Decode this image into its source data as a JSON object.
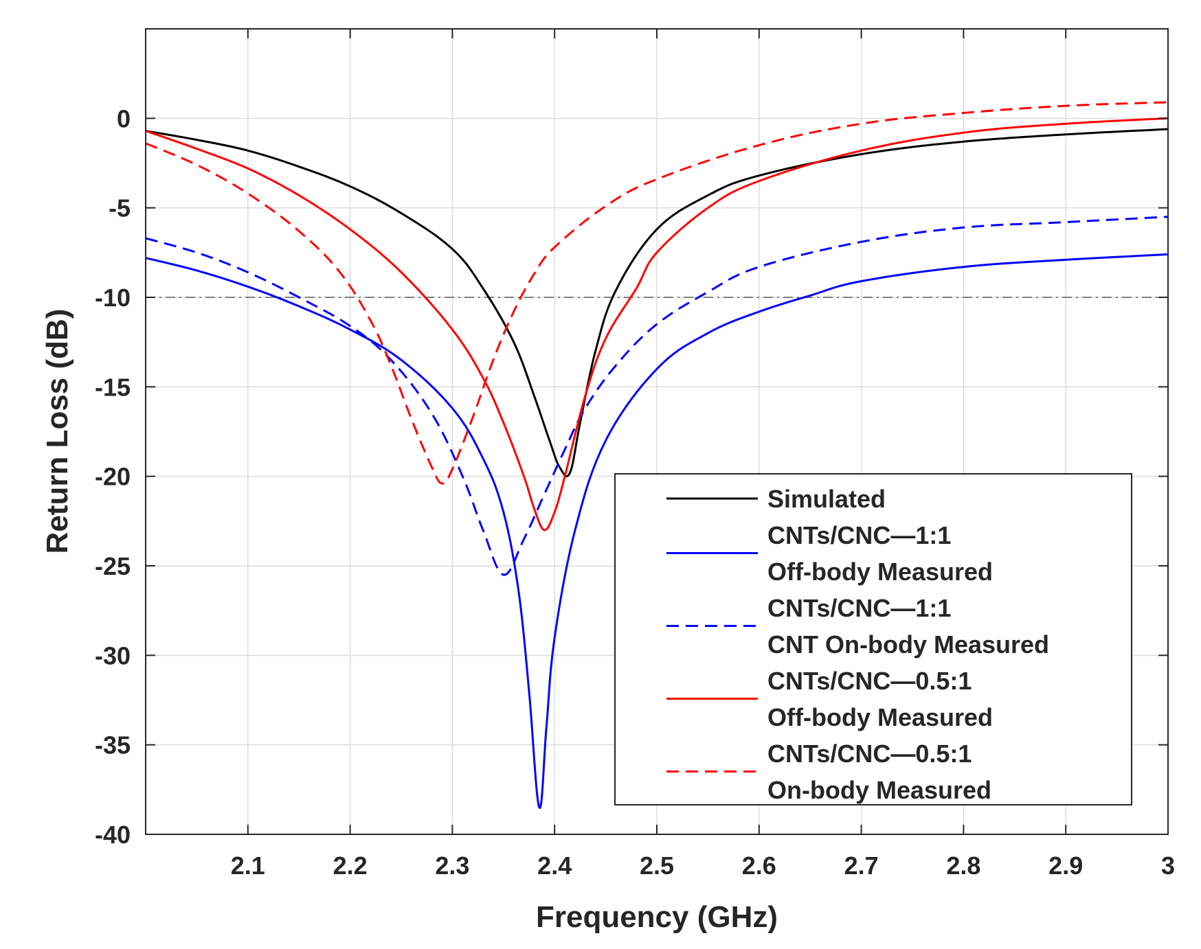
{
  "chart_data": {
    "type": "line",
    "title": "",
    "xlabel": "Frequency (GHz)",
    "ylabel": "Return Loss (dB)",
    "xlim": [
      2.0,
      3.0
    ],
    "ylim": [
      -40,
      5
    ],
    "grid": true,
    "xticks": [
      2.1,
      2.2,
      2.3,
      2.4,
      2.5,
      2.6,
      2.7,
      2.8,
      2.9,
      3.0
    ],
    "xtick_labels": [
      "2.1",
      "2.2",
      "2.3",
      "2.4",
      "2.5",
      "2.6",
      "2.7",
      "2.8",
      "2.9",
      "3"
    ],
    "yticks": [
      0,
      -5,
      -10,
      -15,
      -20,
      -25,
      -30,
      -35,
      -40
    ],
    "ytick_labels": [
      "0",
      "-5",
      "-10",
      "-15",
      "-20",
      "-25",
      "-30",
      "-35",
      "-40"
    ],
    "reference_line": {
      "y": -10,
      "style": "dash-dot",
      "color": "#808080"
    },
    "legend_position": "bottom-right",
    "series": [
      {
        "name": "Simulated",
        "legend_lines": [
          "Simulated"
        ],
        "color": "#000000",
        "style": "solid",
        "points": [
          [
            2.0,
            -0.7
          ],
          [
            2.05,
            -1.2
          ],
          [
            2.1,
            -1.8
          ],
          [
            2.15,
            -2.7
          ],
          [
            2.2,
            -3.8
          ],
          [
            2.25,
            -5.3
          ],
          [
            2.3,
            -7.3
          ],
          [
            2.33,
            -9.5
          ],
          [
            2.36,
            -12.5
          ],
          [
            2.38,
            -15.5
          ],
          [
            2.395,
            -18
          ],
          [
            2.405,
            -19.5
          ],
          [
            2.415,
            -19.8
          ],
          [
            2.425,
            -17
          ],
          [
            2.44,
            -13
          ],
          [
            2.46,
            -9.6
          ],
          [
            2.5,
            -6.2
          ],
          [
            2.55,
            -4.3
          ],
          [
            2.6,
            -3.2
          ],
          [
            2.7,
            -2.0
          ],
          [
            2.8,
            -1.3
          ],
          [
            2.9,
            -0.9
          ],
          [
            3.0,
            -0.6
          ]
        ]
      },
      {
        "name": "CNTs/CNC—1:1 Off-body Measured",
        "legend_lines": [
          "CNTs/CNC—1:1",
          "Off-body Measured"
        ],
        "color": "#0000ff",
        "style": "solid",
        "points": [
          [
            2.0,
            -7.8
          ],
          [
            2.05,
            -8.5
          ],
          [
            2.1,
            -9.4
          ],
          [
            2.15,
            -10.5
          ],
          [
            2.2,
            -11.8
          ],
          [
            2.25,
            -13.5
          ],
          [
            2.3,
            -16.2
          ],
          [
            2.33,
            -19
          ],
          [
            2.35,
            -22
          ],
          [
            2.365,
            -26.5
          ],
          [
            2.375,
            -32
          ],
          [
            2.385,
            -38.5
          ],
          [
            2.392,
            -34
          ],
          [
            2.4,
            -29
          ],
          [
            2.42,
            -23
          ],
          [
            2.45,
            -18
          ],
          [
            2.5,
            -14
          ],
          [
            2.55,
            -12
          ],
          [
            2.6,
            -10.8
          ],
          [
            2.65,
            -9.9
          ],
          [
            2.7,
            -9.1
          ],
          [
            2.8,
            -8.3
          ],
          [
            2.9,
            -7.9
          ],
          [
            3.0,
            -7.6
          ]
        ]
      },
      {
        "name": "CNTs/CNC—1:1 CNT On-body Measured",
        "legend_lines": [
          "CNTs/CNC—1:1",
          "CNT On-body Measured"
        ],
        "color": "#0000ff",
        "style": "dashed",
        "points": [
          [
            2.0,
            -6.7
          ],
          [
            2.05,
            -7.5
          ],
          [
            2.1,
            -8.6
          ],
          [
            2.15,
            -10
          ],
          [
            2.2,
            -11.6
          ],
          [
            2.24,
            -13.5
          ],
          [
            2.28,
            -16.5
          ],
          [
            2.31,
            -20
          ],
          [
            2.33,
            -23
          ],
          [
            2.35,
            -25.5
          ],
          [
            2.37,
            -23.5
          ],
          [
            2.39,
            -21
          ],
          [
            2.41,
            -18.5
          ],
          [
            2.43,
            -16.2
          ],
          [
            2.46,
            -13.8
          ],
          [
            2.5,
            -11.5
          ],
          [
            2.55,
            -9.7
          ],
          [
            2.6,
            -8.3
          ],
          [
            2.7,
            -6.9
          ],
          [
            2.8,
            -6.1
          ],
          [
            2.9,
            -5.8
          ],
          [
            3.0,
            -5.5
          ]
        ]
      },
      {
        "name": "CNTs/CNC—0.5:1 Off-body Measured",
        "legend_lines": [
          "CNTs/CNC—0.5:1",
          "Off-body Measured"
        ],
        "color": "#ff0000",
        "style": "solid",
        "points": [
          [
            2.0,
            -0.7
          ],
          [
            2.05,
            -1.7
          ],
          [
            2.1,
            -2.8
          ],
          [
            2.15,
            -4.3
          ],
          [
            2.2,
            -6.2
          ],
          [
            2.25,
            -8.6
          ],
          [
            2.3,
            -11.8
          ],
          [
            2.33,
            -14.5
          ],
          [
            2.35,
            -17
          ],
          [
            2.37,
            -20
          ],
          [
            2.38,
            -21.8
          ],
          [
            2.39,
            -23
          ],
          [
            2.4,
            -22
          ],
          [
            2.41,
            -20
          ],
          [
            2.43,
            -15.5
          ],
          [
            2.45,
            -12.3
          ],
          [
            2.48,
            -9.5
          ],
          [
            2.5,
            -7.5
          ],
          [
            2.55,
            -5
          ],
          [
            2.6,
            -3.5
          ],
          [
            2.7,
            -1.8
          ],
          [
            2.8,
            -0.8
          ],
          [
            2.9,
            -0.3
          ],
          [
            3.0,
            0.0
          ]
        ]
      },
      {
        "name": "CNTs/CNC—0.5:1 On-body Measured",
        "legend_lines": [
          "CNTs/CNC—0.5:1",
          "On-body Measured"
        ],
        "color": "#ff0000",
        "style": "dashed",
        "points": [
          [
            2.0,
            -1.4
          ],
          [
            2.05,
            -2.6
          ],
          [
            2.1,
            -4.2
          ],
          [
            2.15,
            -6.3
          ],
          [
            2.19,
            -8.6
          ],
          [
            2.22,
            -11.3
          ],
          [
            2.24,
            -13.8
          ],
          [
            2.26,
            -16.8
          ],
          [
            2.28,
            -19.5
          ],
          [
            2.29,
            -20.4
          ],
          [
            2.3,
            -19.6
          ],
          [
            2.32,
            -16.7
          ],
          [
            2.34,
            -13.5
          ],
          [
            2.36,
            -10.8
          ],
          [
            2.38,
            -8.7
          ],
          [
            2.4,
            -7.2
          ],
          [
            2.45,
            -4.9
          ],
          [
            2.5,
            -3.4
          ],
          [
            2.6,
            -1.5
          ],
          [
            2.7,
            -0.3
          ],
          [
            2.8,
            0.3
          ],
          [
            2.9,
            0.7
          ],
          [
            3.0,
            0.9
          ]
        ]
      }
    ]
  }
}
